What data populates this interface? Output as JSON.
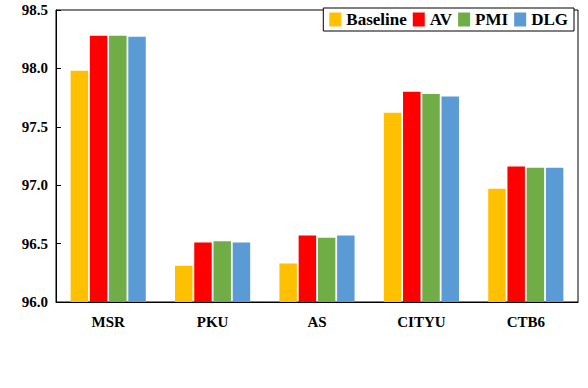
{
  "chart_data": {
    "type": "bar",
    "categories": [
      "MSR",
      "PKU",
      "AS",
      "CITYU",
      "CTB6"
    ],
    "series": [
      {
        "name": "Baseline",
        "color": "#FFC000",
        "values": [
          97.98,
          96.31,
          96.33,
          97.62,
          96.97
        ]
      },
      {
        "name": "AV",
        "color": "#FF0000",
        "values": [
          98.28,
          96.51,
          96.57,
          97.8,
          97.16
        ]
      },
      {
        "name": "PMI",
        "color": "#70AD47",
        "values": [
          98.28,
          96.52,
          96.55,
          97.78,
          97.15
        ]
      },
      {
        "name": "DLG",
        "color": "#5B9BD5",
        "values": [
          98.27,
          96.51,
          96.57,
          97.76,
          97.15
        ]
      }
    ],
    "ylim": [
      96.0,
      98.5
    ],
    "yticks": [
      {
        "value": 96.0,
        "label": "96.0"
      },
      {
        "value": 96.5,
        "label": "96.5"
      },
      {
        "value": 97.0,
        "label": "97.0"
      },
      {
        "value": 97.5,
        "label": "97.5"
      },
      {
        "value": 98.0,
        "label": "98.0"
      },
      98.5
    ],
    "grid": false,
    "legend": "top-right"
  }
}
